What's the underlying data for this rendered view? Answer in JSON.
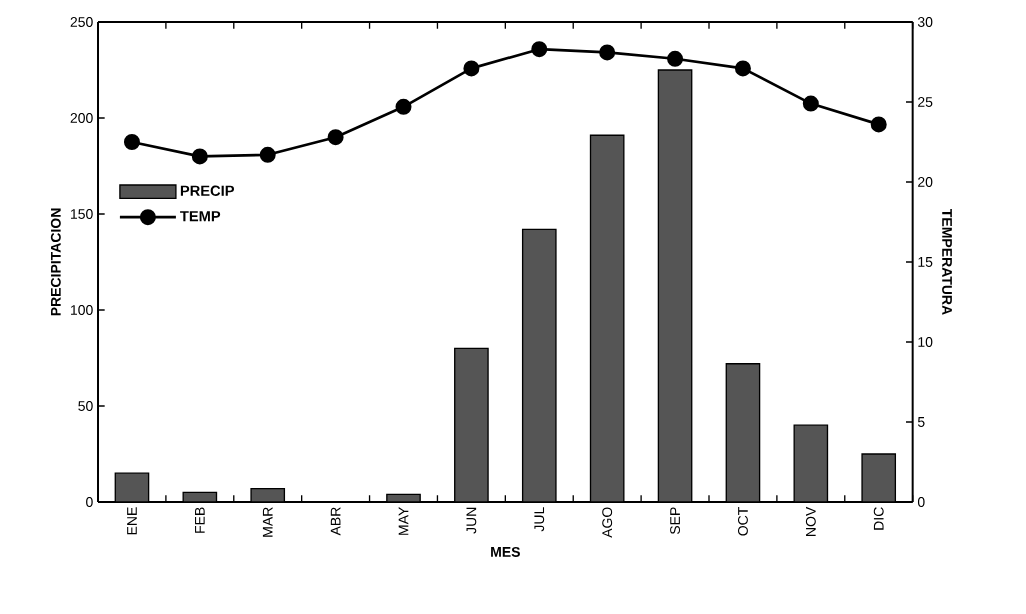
{
  "chart_data": {
    "type": "bar",
    "xlabel": "MES",
    "ylabel": "PRECIPITACION",
    "y2label": "TEMPERATURA",
    "categories": [
      "ENE",
      "FEB",
      "MAR",
      "ABR",
      "MAY",
      "JUN",
      "JUL",
      "AGO",
      "SEP",
      "OCT",
      "NOV",
      "DIC"
    ],
    "series": [
      {
        "name": "PRECIP",
        "color": "#555555",
        "values": [
          15,
          5,
          7,
          0,
          4,
          80,
          142,
          191,
          225,
          72,
          40,
          25
        ]
      },
      {
        "name": "TEMP",
        "type": "line",
        "axis": "y2",
        "color": "#000000",
        "values": [
          22.5,
          21.6,
          21.7,
          22.8,
          24.7,
          27.1,
          28.3,
          28.1,
          27.7,
          27.1,
          24.9,
          23.6
        ]
      }
    ],
    "ylim": [
      0,
      250
    ],
    "yticks": [
      0,
      50,
      100,
      150,
      200,
      250
    ],
    "y2lim": [
      0,
      30
    ],
    "y2ticks": [
      0,
      5,
      10,
      15,
      20,
      25,
      30
    ],
    "marker": "circle",
    "legend": "left"
  }
}
